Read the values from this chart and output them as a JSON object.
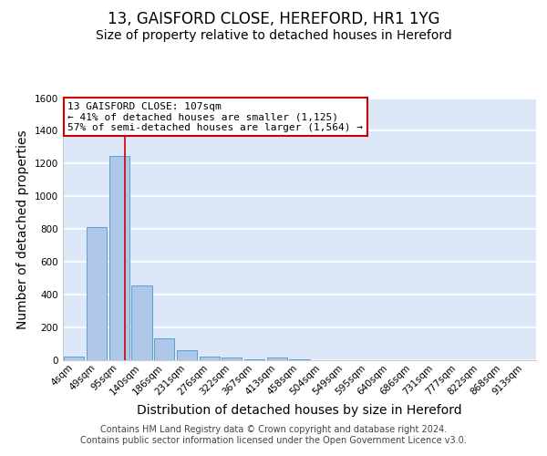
{
  "title_line1": "13, GAISFORD CLOSE, HEREFORD, HR1 1YG",
  "title_line2": "Size of property relative to detached houses in Hereford",
  "xlabel": "Distribution of detached houses by size in Hereford",
  "ylabel": "Number of detached properties",
  "bar_labels": [
    "4sqm",
    "49sqm",
    "95sqm",
    "140sqm",
    "186sqm",
    "231sqm",
    "276sqm",
    "322sqm",
    "367sqm",
    "413sqm",
    "458sqm",
    "504sqm",
    "549sqm",
    "595sqm",
    "640sqm",
    "686sqm",
    "731sqm",
    "777sqm",
    "822sqm",
    "868sqm",
    "913sqm"
  ],
  "bar_values": [
    25,
    810,
    1245,
    455,
    135,
    62,
    25,
    14,
    5,
    14,
    5,
    0,
    0,
    0,
    0,
    0,
    0,
    0,
    0,
    0,
    0
  ],
  "bar_color": "#aec6e8",
  "bar_edge_color": "#5a9fd4",
  "background_color": "#dce8f8",
  "grid_color": "#ffffff",
  "annotation_line1": "13 GAISFORD CLOSE: 107sqm",
  "annotation_line2": "← 41% of detached houses are smaller (1,125)",
  "annotation_line3": "57% of semi-detached houses are larger (1,564) →",
  "annotation_box_color": "#ffffff",
  "annotation_box_edge_color": "#cc0000",
  "vline_color": "#cc0000",
  "vline_position": 2.27,
  "ylim_min": 0,
  "ylim_max": 1600,
  "yticks": [
    0,
    200,
    400,
    600,
    800,
    1000,
    1200,
    1400,
    1600
  ],
  "footer_line1": "Contains HM Land Registry data © Crown copyright and database right 2024.",
  "footer_line2": "Contains public sector information licensed under the Open Government Licence v3.0.",
  "title_fontsize": 12,
  "subtitle_fontsize": 10,
  "axis_label_fontsize": 10,
  "tick_fontsize": 7.5,
  "annotation_fontsize": 8,
  "footer_fontsize": 7
}
